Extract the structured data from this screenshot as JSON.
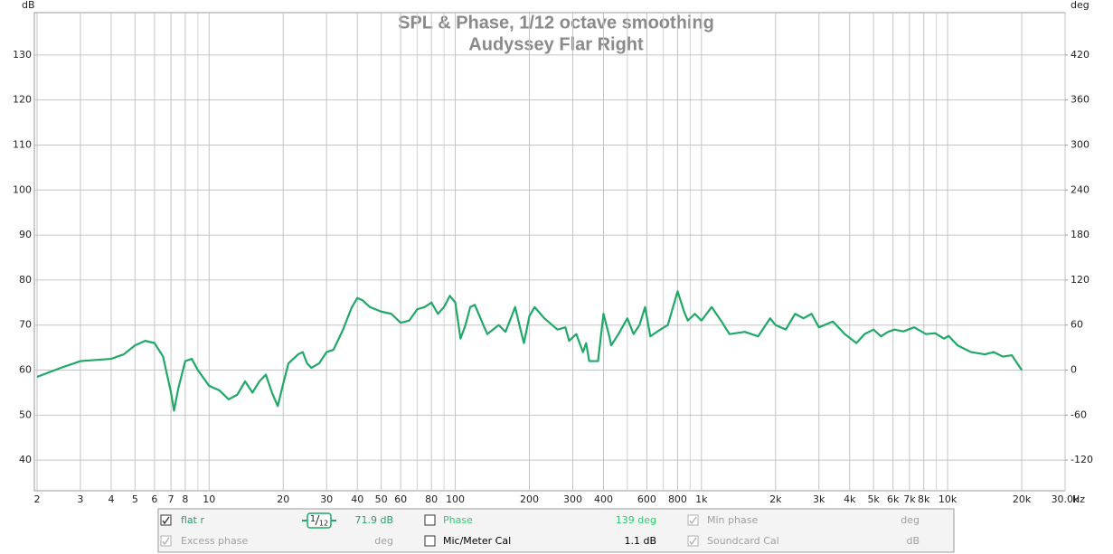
{
  "chart_data": {
    "type": "line",
    "title": "SPL & Phase, 1/12 octave smoothing",
    "subtitle": "Audyssey Flar Right",
    "y_label": "dB",
    "y2_label": "deg",
    "x_label": "Hz",
    "log_x": true,
    "grid": true,
    "xlim": [
      1.95,
      30000
    ],
    "ylim": [
      33.2,
      139.4
    ],
    "y2lim": [
      -160.8,
      476.4
    ],
    "xticks": [
      2,
      3,
      4,
      5,
      6,
      7,
      8,
      10,
      20,
      30,
      40,
      50,
      60,
      80,
      100,
      200,
      300,
      400,
      600,
      800,
      {
        "value": 1000,
        "label": "1k"
      },
      {
        "value": 2000,
        "label": "2k"
      },
      {
        "value": 3000,
        "label": "3k"
      },
      {
        "value": 4000,
        "label": "4k"
      },
      {
        "value": 5000,
        "label": "5k"
      },
      {
        "value": 6000,
        "label": "6k"
      },
      {
        "value": 7000,
        "label": "7k"
      },
      {
        "value": 8000,
        "label": "8k"
      },
      {
        "value": 10000,
        "label": "10k"
      },
      {
        "value": 20000,
        "label": "20k"
      },
      {
        "value": 30000,
        "label": "30.0k"
      }
    ],
    "xminor": [
      9,
      70,
      90,
      500,
      700,
      900,
      9000
    ],
    "yticks": [
      40,
      50,
      60,
      70,
      80,
      90,
      100,
      110,
      120,
      130
    ],
    "y2ticks": [
      -120,
      -60,
      0,
      60,
      120,
      180,
      240,
      300,
      360,
      420
    ],
    "x": [
      2,
      2.5,
      3,
      4,
      4.5,
      5,
      5.5,
      6,
      6.5,
      7,
      7.2,
      7.5,
      8,
      8.5,
      9,
      10,
      11,
      12,
      13,
      14,
      15,
      16,
      17,
      18,
      19,
      20,
      21,
      23,
      24,
      25,
      26,
      28,
      30,
      32,
      35,
      38,
      40,
      42,
      45,
      50,
      55,
      60,
      65,
      70,
      75,
      80,
      85,
      90,
      95,
      100,
      105,
      110,
      115,
      120,
      130,
      135,
      150,
      160,
      175,
      185,
      190,
      200,
      210,
      230,
      260,
      280,
      290,
      310,
      330,
      340,
      350,
      380,
      400,
      420,
      430,
      460,
      500,
      530,
      560,
      590,
      620,
      680,
      730,
      800,
      850,
      880,
      940,
      1000,
      1100,
      1200,
      1300,
      1500,
      1700,
      1900,
      2000,
      2200,
      2400,
      2600,
      2800,
      3000,
      3420,
      3820,
      4260,
      4600,
      5000,
      5360,
      5730,
      6080,
      6610,
      7310,
      8170,
      8890,
      9670,
      10090,
      10970,
      12450,
      14160,
      15400,
      16750,
      18230,
      20000
    ],
    "series": [
      {
        "name": "flat r",
        "color": "#1fa866",
        "values": [
          58.5,
          60.5,
          62,
          62.5,
          63.5,
          65.5,
          66.5,
          66,
          63,
          55,
          51,
          56,
          62,
          62.5,
          60,
          56.5,
          55.5,
          53.5,
          54.5,
          57.5,
          55,
          57.5,
          59,
          55,
          52,
          57,
          61.5,
          63.5,
          64,
          61.5,
          60.5,
          61.5,
          64,
          64.5,
          69,
          74,
          76,
          75.5,
          74,
          73,
          72.5,
          70.5,
          71,
          73.5,
          74,
          75,
          72.5,
          74,
          76.5,
          75,
          67,
          70,
          74,
          74.5,
          70,
          68,
          70,
          68.5,
          74,
          68.5,
          66,
          72,
          74,
          71.5,
          69,
          69.5,
          66.5,
          68,
          64,
          66,
          62,
          62,
          72.5,
          68,
          65.5,
          68,
          71.5,
          68,
          70,
          74,
          67.5,
          69,
          70,
          77.5,
          73,
          71,
          72.5,
          71,
          74,
          71,
          68,
          68.5,
          67.5,
          71.5,
          70,
          69,
          72.5,
          71.5,
          72.5,
          69.5,
          70.8,
          68,
          66,
          68,
          69,
          67.5,
          68.5,
          69,
          68.6,
          69.5,
          68,
          68.2,
          67,
          67.6,
          65.5,
          64,
          63.5,
          64,
          63,
          63.3,
          60
        ]
      }
    ]
  },
  "panel": {
    "smoothing": {
      "num": "1",
      "den": "12"
    },
    "items": [
      {
        "label": "flat r",
        "value": "71.9 dB",
        "checked": true,
        "enabled": true,
        "color": "#1fa866"
      },
      {
        "label": "Phase",
        "value": "139 deg",
        "checked": false,
        "enabled": true,
        "color": "#2ecc71"
      },
      {
        "label": "Min phase",
        "value": "deg",
        "checked": true,
        "enabled": false,
        "color": "#a0a0a0"
      },
      {
        "label": "Excess phase",
        "value": "deg",
        "checked": true,
        "enabled": false,
        "color": "#a0a0a0"
      },
      {
        "label": "Mic/Meter Cal",
        "value": "1.1 dB",
        "checked": false,
        "enabled": true,
        "color": "#000000"
      },
      {
        "label": "Soundcard Cal",
        "value": "dB",
        "checked": true,
        "enabled": false,
        "color": "#a0a0a0"
      }
    ]
  }
}
